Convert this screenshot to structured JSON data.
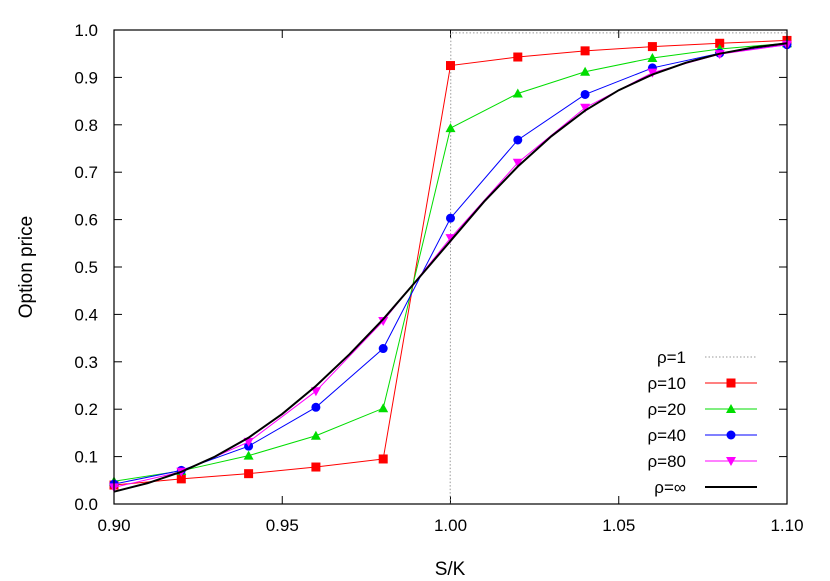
{
  "chart_data": {
    "type": "line",
    "xlabel": "S/K",
    "ylabel": "Option price",
    "xlim": [
      0.9,
      1.1
    ],
    "ylim": [
      0.0,
      1.0
    ],
    "xticks": [
      "0.90",
      "0.95",
      "1.00",
      "1.05",
      "1.10"
    ],
    "yticks": [
      "0.0",
      "0.1",
      "0.2",
      "0.3",
      "0.4",
      "0.5",
      "0.6",
      "0.7",
      "0.8",
      "0.9",
      "1.0"
    ],
    "grid": false,
    "legend": "bottom-right",
    "series": [
      {
        "name": "ρ=1",
        "color": "#999999",
        "style": "dotted",
        "marker": "none",
        "x": [
          0.9,
          0.9999,
          1.0001,
          1.1
        ],
        "y": [
          0.0,
          0.0,
          0.994,
          0.994
        ]
      },
      {
        "name": "ρ=10",
        "color": "#ff0000",
        "marker": "square",
        "x": [
          0.9,
          0.92,
          0.94,
          0.96,
          0.98,
          1.0,
          1.02,
          1.04,
          1.06,
          1.08,
          1.1
        ],
        "y": [
          0.04,
          0.053,
          0.064,
          0.078,
          0.095,
          0.925,
          0.943,
          0.956,
          0.965,
          0.972,
          0.978
        ]
      },
      {
        "name": "ρ=20",
        "color": "#00dd00",
        "marker": "triangle-up",
        "x": [
          0.9,
          0.92,
          0.94,
          0.96,
          0.98,
          1.0,
          1.02,
          1.04,
          1.06,
          1.08,
          1.1
        ],
        "y": [
          0.048,
          0.07,
          0.102,
          0.144,
          0.202,
          0.793,
          0.866,
          0.912,
          0.941,
          0.96,
          0.972
        ]
      },
      {
        "name": "ρ=40",
        "color": "#0000ff",
        "marker": "circle",
        "x": [
          0.9,
          0.92,
          0.94,
          0.96,
          0.98,
          1.0,
          1.02,
          1.04,
          1.06,
          1.08,
          1.1
        ],
        "y": [
          0.042,
          0.071,
          0.122,
          0.204,
          0.328,
          0.603,
          0.768,
          0.864,
          0.92,
          0.951,
          0.969
        ]
      },
      {
        "name": "ρ=80",
        "color": "#ff00ff",
        "marker": "triangle-down",
        "x": [
          0.9,
          0.92,
          0.94,
          0.96,
          0.98,
          1.0,
          1.02,
          1.04,
          1.06,
          1.08,
          1.1
        ],
        "y": [
          0.035,
          0.068,
          0.131,
          0.238,
          0.386,
          0.561,
          0.72,
          0.836,
          0.91,
          0.949,
          0.969
        ]
      },
      {
        "name": "ρ=∞",
        "color": "#000000",
        "marker": "none",
        "x": [
          0.9,
          0.91,
          0.92,
          0.93,
          0.94,
          0.95,
          0.96,
          0.97,
          0.98,
          0.99,
          1.0,
          1.01,
          1.02,
          1.03,
          1.04,
          1.05,
          1.06,
          1.07,
          1.08,
          1.09,
          1.1
        ],
        "y": [
          0.026,
          0.044,
          0.068,
          0.1,
          0.14,
          0.19,
          0.249,
          0.316,
          0.39,
          0.472,
          0.555,
          0.638,
          0.712,
          0.776,
          0.83,
          0.873,
          0.906,
          0.931,
          0.95,
          0.963,
          0.972
        ]
      }
    ]
  }
}
